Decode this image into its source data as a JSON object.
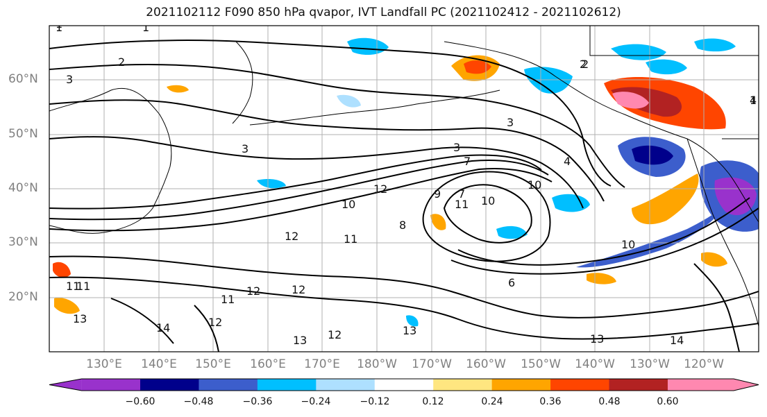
{
  "title": "2021102112 F090 850 hPa qvapor, IVT Landfall PC (2021102412 - 2021102612)",
  "lat_labels": [
    "60°N",
    "50°N",
    "40°N",
    "30°N",
    "20°N"
  ],
  "lon_labels": [
    "130°E",
    "140°E",
    "150°E",
    "160°E",
    "170°E",
    "180°W",
    "170°W",
    "160°W",
    "150°W",
    "140°W",
    "130°W",
    "120°W"
  ],
  "colorbar": {
    "colors": [
      "#9932cc",
      "#00008b",
      "#3c5ecc",
      "#00bfff",
      "#aee0ff",
      "#ffffff",
      "#ffe680",
      "#ffa500",
      "#ff4500",
      "#b22222",
      "#ff88b0"
    ],
    "ticks": [
      "−0.60",
      "−0.48",
      "−0.36",
      "−0.24",
      "−0.12",
      "0.12",
      "0.24",
      "0.36",
      "0.48",
      "0.60"
    ]
  },
  "contour_labels": [
    "1",
    "1",
    "2",
    "3",
    "3",
    "2",
    "1",
    "3",
    "4",
    "3",
    "7",
    "10",
    "11",
    "12",
    "12",
    "10",
    "11",
    "10",
    "9",
    "8",
    "7",
    "11",
    "12",
    "11",
    "13",
    "14",
    "12",
    "13",
    "13",
    "14",
    "12",
    "11",
    "10",
    "2",
    "4",
    "1",
    "12",
    "13",
    "6"
  ]
}
